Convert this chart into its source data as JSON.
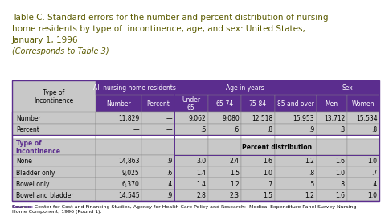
{
  "title_line1": "Table C. Standard errors for the number and percent distribution of nursing",
  "title_line2": "home residents by type of  incontinence, age, and sex: United States,",
  "title_line3": "January 1, 1996",
  "title_line4": "(Corresponds to Table 3)",
  "header_bg": "#5b2d8e",
  "header_text_color": "#ffffff",
  "row_bg_light": "#c8c8c8",
  "title_color": "#5b5b00",
  "italic_color": "#5b5b00",
  "row_label_color": "#5b2d8e",
  "source_text": "Source:  Center for Cost and Financing Studies, Agency for Health Care Policy and Research:  Medical Expenditure Panel Survey Nursing\nHome Component, 1996 (Round 1).",
  "col_headers_sub": [
    "Number",
    "Percent",
    "Under\n65",
    "65-74",
    "75-84",
    "85 and over",
    "Men",
    "Women"
  ],
  "rows": [
    {
      "label": "Number",
      "bold": false,
      "values": [
        "11,829",
        "—",
        "9,062",
        "9,080",
        "12,518",
        "15,953",
        "13,712",
        "15,534"
      ]
    },
    {
      "label": "Percent",
      "bold": false,
      "values": [
        "—",
        "—",
        ".6",
        ".6",
        ".8",
        ".9",
        ".8",
        ".8"
      ]
    },
    {
      "label": "",
      "bold": false,
      "values": [
        "",
        "",
        "",
        "",
        "",
        "",
        "",
        ""
      ]
    },
    {
      "label": "Type of\nincontinence",
      "bold": true,
      "values": [
        "",
        "",
        "Percent distribution",
        "",
        "",
        "",
        "",
        ""
      ]
    },
    {
      "label": "None",
      "bold": false,
      "values": [
        "14,863",
        ".9",
        "3.0",
        "2.4",
        "1.6",
        "1.2",
        "1.6",
        "1.0"
      ]
    },
    {
      "label": "Bladder only",
      "bold": false,
      "values": [
        "9,025",
        ".6",
        "1.4",
        "1.5",
        "1.0",
        ".8",
        "1.0",
        ".7"
      ]
    },
    {
      "label": "Bowel only",
      "bold": false,
      "values": [
        "6,370",
        ".4",
        "1.4",
        "1.2",
        ".7",
        ".5",
        ".8",
        ".4"
      ]
    },
    {
      "label": "Bowel and bladder",
      "bold": false,
      "values": [
        "14,545",
        ".9",
        "2.8",
        "2.3",
        "1.5",
        "1.2",
        "1.6",
        "1.0"
      ]
    }
  ]
}
